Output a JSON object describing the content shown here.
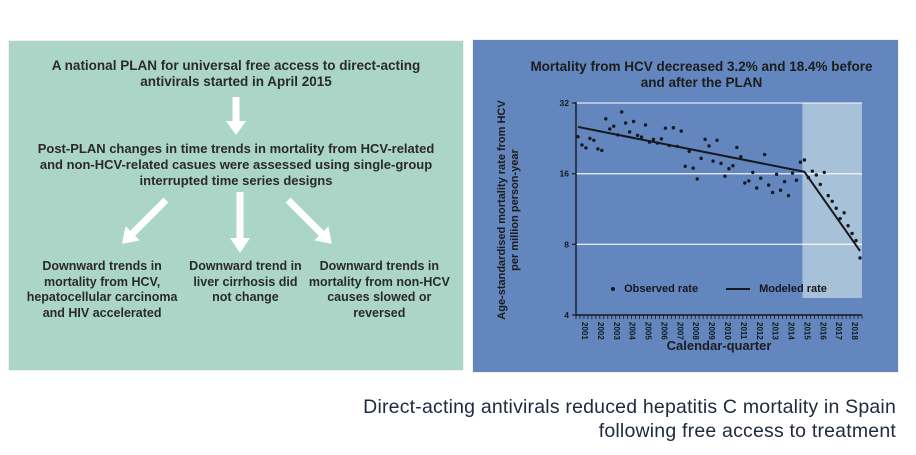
{
  "colors": {
    "left_panel": "#abd5c7",
    "right_panel": "#6286bd",
    "post_plan_shade": "#a7c2d8",
    "gridline": "rgba(255,255,255,0.8)",
    "ink": "#15181e",
    "caption_text": "#202a3e"
  },
  "flow": {
    "title": "A national PLAN for universal free access to direct-acting antivirals started in April 2015",
    "method": "Post-PLAN changes in time trends in mortality from HCV-related and non-HCV-related casues were assessed using single-group interrupted time series designs",
    "outcomes": [
      "Downward trends in mortality from HCV, hepatocellular carcinoma and HIV accelerated",
      "Downward trend in liver cirrhosis did not change",
      "Downward trends in mortality from non-HCV causes slowed or reversed"
    ],
    "arrow_icons": [
      "down-arrow",
      "down-left-arrow",
      "down-arrow",
      "down-right-arrow"
    ]
  },
  "chart_data": {
    "type": "scatter",
    "title": "Mortality from HCV decreased 3.2% and 18.4% before and after the PLAN",
    "xlabel": "Calendar-quarter",
    "ylabel": "Age-standardised mortality rate from HCV per million person-year",
    "y_scale": "log2",
    "y_ticks": [
      32,
      16,
      8,
      4
    ],
    "ylim": [
      4,
      32
    ],
    "x_years": [
      2001,
      2002,
      2003,
      2004,
      2005,
      2006,
      2007,
      2008,
      2009,
      2010,
      2011,
      2012,
      2013,
      2014,
      2015,
      2016,
      2017,
      2018
    ],
    "quarters_per_year": 4,
    "plan_start": "2015q2",
    "plan_shaded_region": true,
    "grid": "horizontal-only",
    "legend_position": "bottom-center",
    "series": [
      {
        "name": "Observed rate",
        "style": "scatter",
        "values": [
          23.0,
          21.2,
          20.6,
          22.6,
          22.2,
          20.4,
          20.1,
          27.4,
          24.8,
          25.5,
          23.4,
          29.3,
          26.3,
          24.1,
          26.7,
          23.3,
          22.9,
          25.8,
          21.8,
          22.4,
          21.6,
          22.5,
          25.0,
          21.1,
          25.1,
          20.9,
          24.3,
          17.2,
          19.9,
          16.9,
          15.2,
          18.6,
          22.4,
          21.0,
          18.1,
          22.2,
          17.7,
          15.6,
          16.8,
          17.3,
          20.7,
          18.9,
          14.6,
          14.9,
          16.2,
          13.9,
          15.3,
          19.3,
          14.3,
          13.3,
          15.9,
          13.6,
          14.8,
          12.9,
          16.1,
          15.0,
          17.9,
          18.3,
          15.4,
          16.4,
          15.8,
          14.4,
          16.2,
          12.9,
          12.2,
          11.4,
          10.3,
          10.9,
          9.6,
          8.9,
          8.3,
          7.0
        ]
      },
      {
        "name": "Modeled rate",
        "style": "line",
        "breakpoints": [
          {
            "quarter": "2001q1",
            "value": 25.3
          },
          {
            "quarter": "2015q2",
            "value": 16.3
          },
          {
            "quarter": "2018q4",
            "value": 7.5
          }
        ]
      }
    ]
  },
  "caption": {
    "line1": "Direct-acting antivirals reduced hepatitis C mortality in Spain",
    "line2": "following free access to treatment"
  }
}
